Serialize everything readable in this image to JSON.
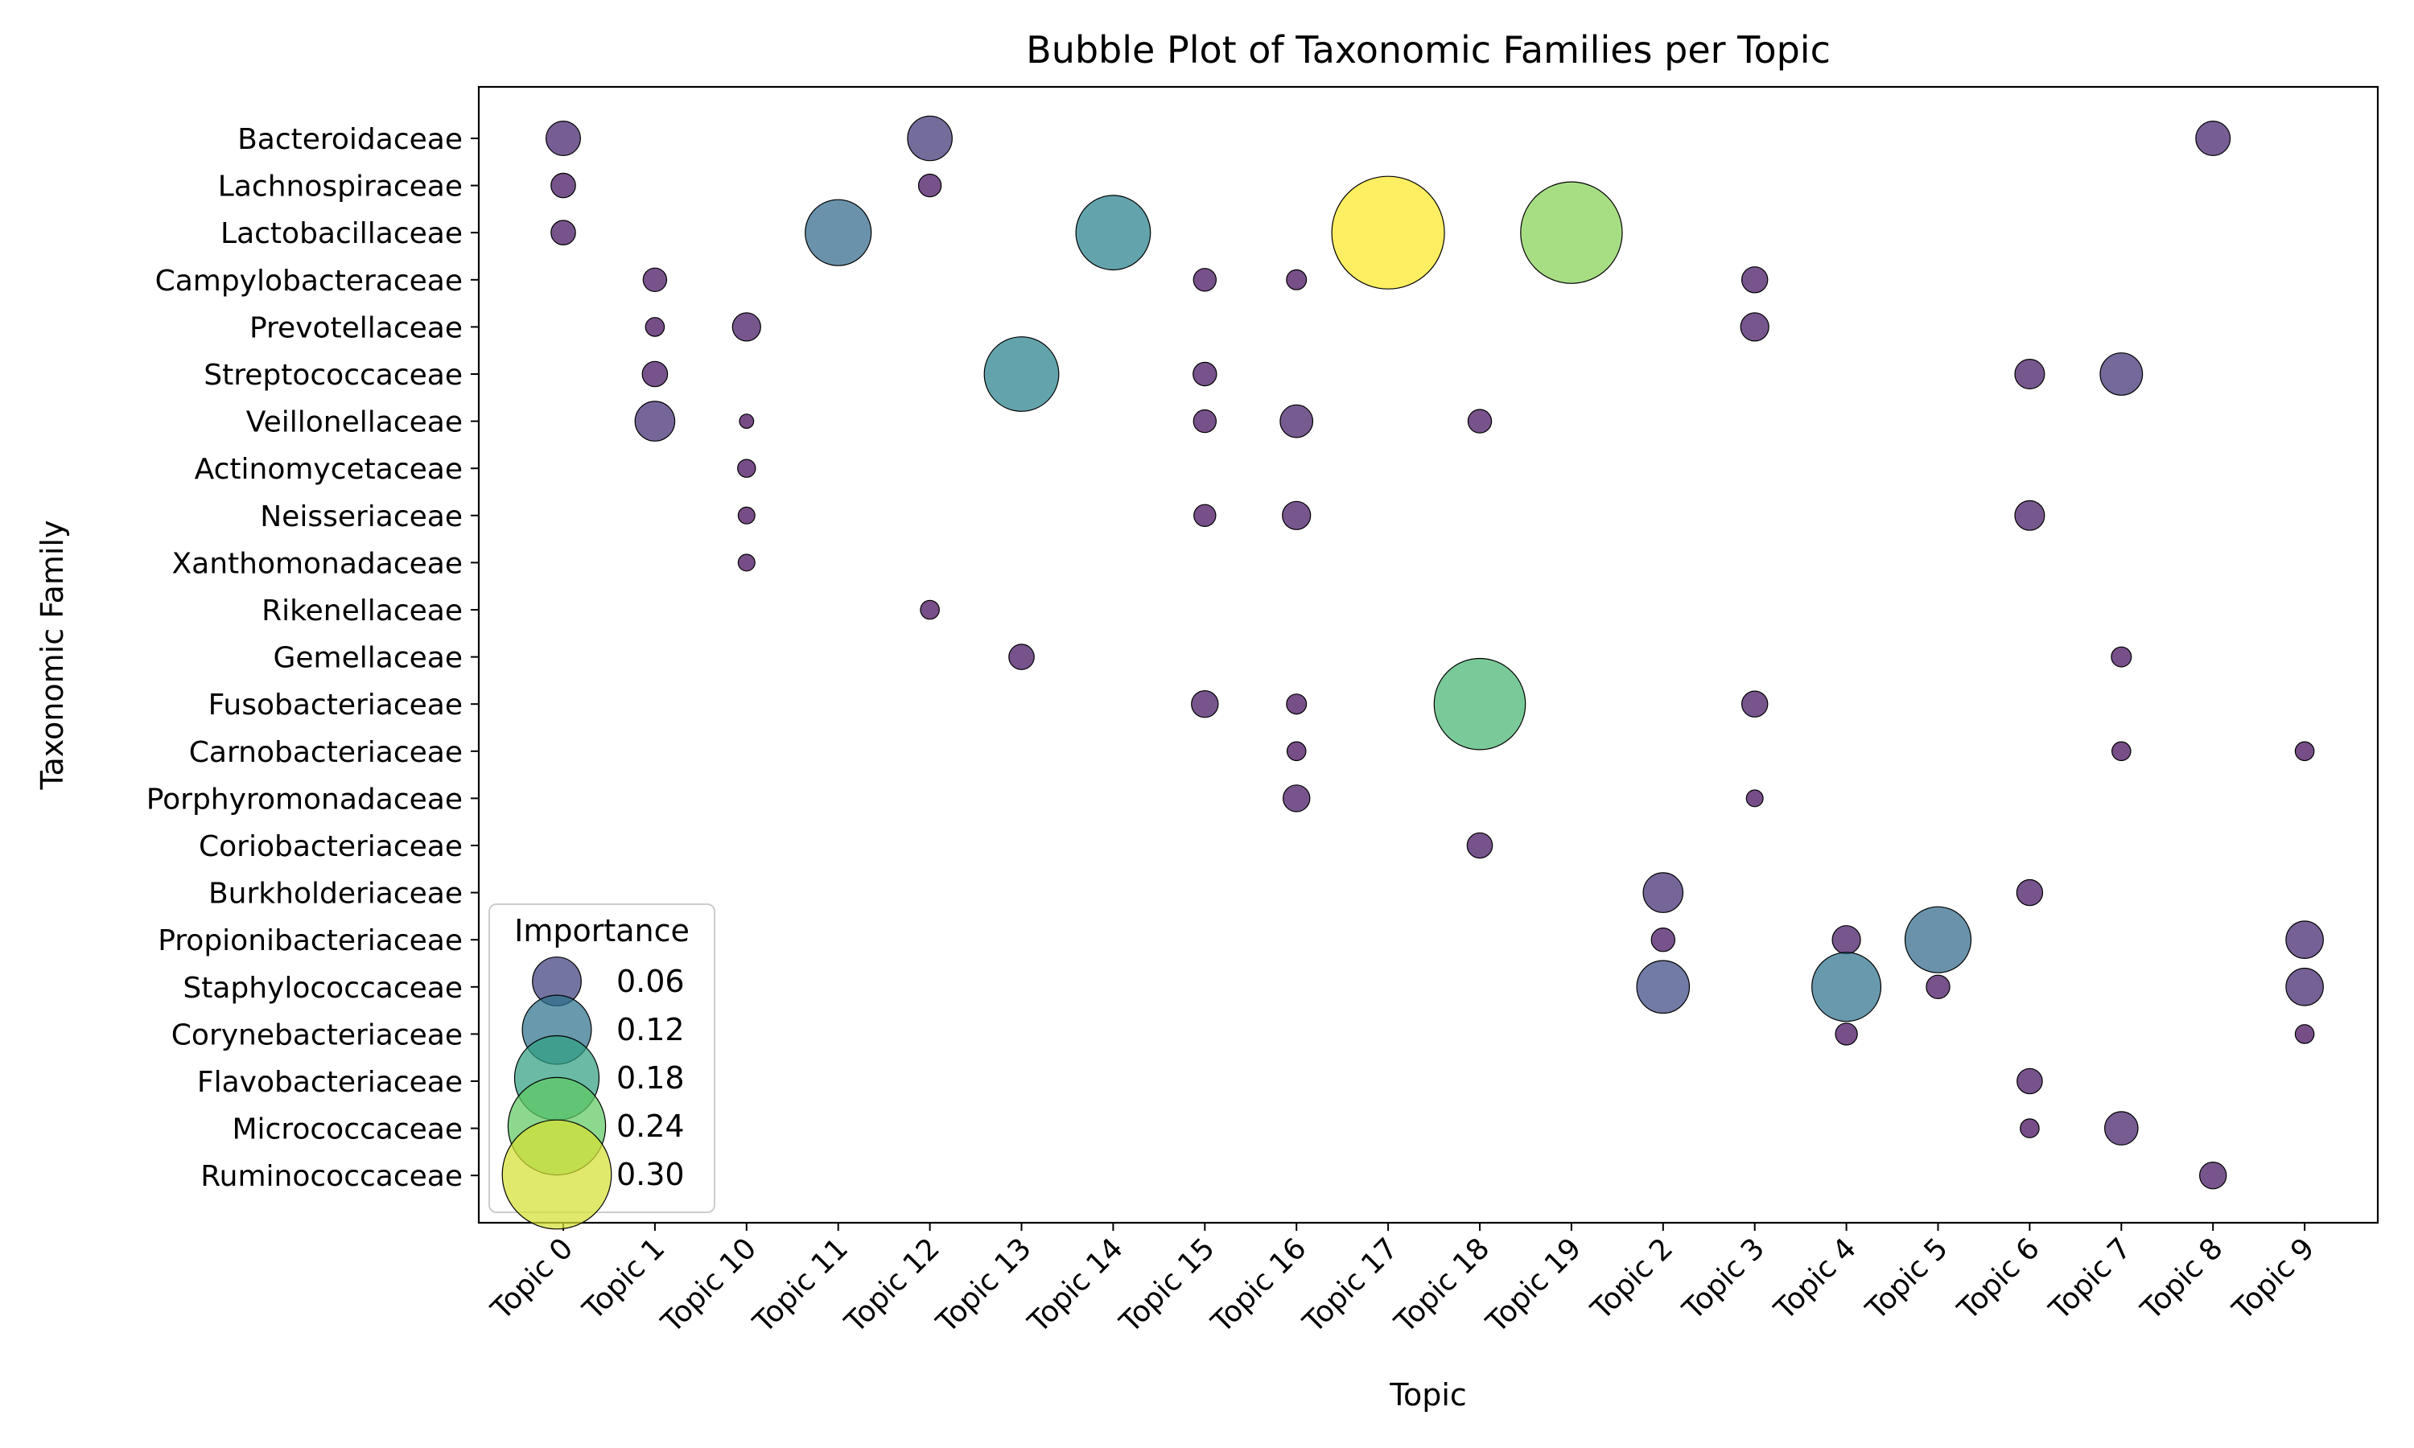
{
  "chart_data": {
    "type": "scatter",
    "subtype": "bubble",
    "title": "Bubble Plot of Taxonomic Families per Topic",
    "xlabel": "Topic",
    "ylabel": "Taxonomic Family",
    "categories_x": [
      "Topic 0",
      "Topic 1",
      "Topic 10",
      "Topic 11",
      "Topic 12",
      "Topic 13",
      "Topic 14",
      "Topic 15",
      "Topic 16",
      "Topic 17",
      "Topic 18",
      "Topic 19",
      "Topic 2",
      "Topic 3",
      "Topic 4",
      "Topic 5",
      "Topic 6",
      "Topic 7",
      "Topic 8",
      "Topic 9"
    ],
    "categories_y": [
      "Bacteroidaceae",
      "Lachnospiraceae",
      "Lactobacillaceae",
      "Campylobacteraceae",
      "Prevotellaceae",
      "Streptococcaceae",
      "Veillonellaceae",
      "Actinomycetaceae",
      "Neisseriaceae",
      "Xanthomonadaceae",
      "Rikenellaceae",
      "Gemellaceae",
      "Fusobacteriaceae",
      "Carnobacteriaceae",
      "Porphyromonadaceae",
      "Coriobacteriaceae",
      "Burkholderiaceae",
      "Propionibacteriaceae",
      "Staphylococcaceae",
      "Corynebacteriaceae",
      "Flavobacteriaceae",
      "Micrococcaceae",
      "Ruminococcaceae"
    ],
    "size_scale_max": 0.32,
    "colormap": [
      "#440154",
      "#3b528b",
      "#21918c",
      "#5ec962",
      "#fde725"
    ],
    "points": [
      {
        "x": "Topic 0",
        "y": "Bacteroidaceae",
        "value": 0.03
      },
      {
        "x": "Topic 0",
        "y": "Lachnospiraceae",
        "value": 0.015
      },
      {
        "x": "Topic 0",
        "y": "Lactobacillaceae",
        "value": 0.015
      },
      {
        "x": "Topic 1",
        "y": "Campylobacteraceae",
        "value": 0.014
      },
      {
        "x": "Topic 1",
        "y": "Prevotellaceae",
        "value": 0.009
      },
      {
        "x": "Topic 1",
        "y": "Streptococcaceae",
        "value": 0.016
      },
      {
        "x": "Topic 1",
        "y": "Veillonellaceae",
        "value": 0.04
      },
      {
        "x": "Topic 10",
        "y": "Prevotellaceae",
        "value": 0.02
      },
      {
        "x": "Topic 10",
        "y": "Veillonellaceae",
        "value": 0.005
      },
      {
        "x": "Topic 10",
        "y": "Actinomycetaceae",
        "value": 0.008
      },
      {
        "x": "Topic 10",
        "y": "Neisseriaceae",
        "value": 0.007
      },
      {
        "x": "Topic 10",
        "y": "Xanthomonadaceae",
        "value": 0.007
      },
      {
        "x": "Topic 11",
        "y": "Lactobacillaceae",
        "value": 0.11
      },
      {
        "x": "Topic 12",
        "y": "Bacteroidaceae",
        "value": 0.05
      },
      {
        "x": "Topic 12",
        "y": "Lachnospiraceae",
        "value": 0.013
      },
      {
        "x": "Topic 12",
        "y": "Rikenellaceae",
        "value": 0.009
      },
      {
        "x": "Topic 13",
        "y": "Streptococcaceae",
        "value": 0.14
      },
      {
        "x": "Topic 13",
        "y": "Gemellaceae",
        "value": 0.016
      },
      {
        "x": "Topic 14",
        "y": "Lactobacillaceae",
        "value": 0.14
      },
      {
        "x": "Topic 15",
        "y": "Campylobacteraceae",
        "value": 0.013
      },
      {
        "x": "Topic 15",
        "y": "Streptococcaceae",
        "value": 0.014
      },
      {
        "x": "Topic 15",
        "y": "Veillonellaceae",
        "value": 0.013
      },
      {
        "x": "Topic 15",
        "y": "Neisseriaceae",
        "value": 0.012
      },
      {
        "x": "Topic 15",
        "y": "Fusobacteriaceae",
        "value": 0.018
      },
      {
        "x": "Topic 16",
        "y": "Campylobacteraceae",
        "value": 0.01
      },
      {
        "x": "Topic 16",
        "y": "Veillonellaceae",
        "value": 0.027
      },
      {
        "x": "Topic 16",
        "y": "Neisseriaceae",
        "value": 0.02
      },
      {
        "x": "Topic 16",
        "y": "Fusobacteriaceae",
        "value": 0.01
      },
      {
        "x": "Topic 16",
        "y": "Carnobacteriaceae",
        "value": 0.009
      },
      {
        "x": "Topic 16",
        "y": "Porphyromonadaceae",
        "value": 0.018
      },
      {
        "x": "Topic 17",
        "y": "Lactobacillaceae",
        "value": 0.32
      },
      {
        "x": "Topic 18",
        "y": "Veillonellaceae",
        "value": 0.014
      },
      {
        "x": "Topic 18",
        "y": "Fusobacteriaceae",
        "value": 0.21
      },
      {
        "x": "Topic 18",
        "y": "Coriobacteriaceae",
        "value": 0.016
      },
      {
        "x": "Topic 19",
        "y": "Lactobacillaceae",
        "value": 0.26
      },
      {
        "x": "Topic 2",
        "y": "Burkholderiaceae",
        "value": 0.04
      },
      {
        "x": "Topic 2",
        "y": "Propionibacteriaceae",
        "value": 0.014
      },
      {
        "x": "Topic 2",
        "y": "Staphylococcaceae",
        "value": 0.07
      },
      {
        "x": "Topic 3",
        "y": "Campylobacteraceae",
        "value": 0.017
      },
      {
        "x": "Topic 3",
        "y": "Prevotellaceae",
        "value": 0.02
      },
      {
        "x": "Topic 3",
        "y": "Fusobacteriaceae",
        "value": 0.017
      },
      {
        "x": "Topic 3",
        "y": "Porphyromonadaceae",
        "value": 0.007
      },
      {
        "x": "Topic 4",
        "y": "Propionibacteriaceae",
        "value": 0.02
      },
      {
        "x": "Topic 4",
        "y": "Staphylococcaceae",
        "value": 0.12
      },
      {
        "x": "Topic 4",
        "y": "Corynebacteriaceae",
        "value": 0.012
      },
      {
        "x": "Topic 5",
        "y": "Propionibacteriaceae",
        "value": 0.11
      },
      {
        "x": "Topic 5",
        "y": "Staphylococcaceae",
        "value": 0.014
      },
      {
        "x": "Topic 6",
        "y": "Streptococcaceae",
        "value": 0.022
      },
      {
        "x": "Topic 6",
        "y": "Neisseriaceae",
        "value": 0.022
      },
      {
        "x": "Topic 6",
        "y": "Burkholderiaceae",
        "value": 0.017
      },
      {
        "x": "Topic 6",
        "y": "Flavobacteriaceae",
        "value": 0.016
      },
      {
        "x": "Topic 6",
        "y": "Micrococcaceae",
        "value": 0.009
      },
      {
        "x": "Topic 7",
        "y": "Streptococcaceae",
        "value": 0.045
      },
      {
        "x": "Topic 7",
        "y": "Gemellaceae",
        "value": 0.01
      },
      {
        "x": "Topic 7",
        "y": "Carnobacteriaceae",
        "value": 0.009
      },
      {
        "x": "Topic 7",
        "y": "Micrococcaceae",
        "value": 0.028
      },
      {
        "x": "Topic 8",
        "y": "Bacteroidaceae",
        "value": 0.03
      },
      {
        "x": "Topic 8",
        "y": "Ruminococcaceae",
        "value": 0.018
      },
      {
        "x": "Topic 9",
        "y": "Carnobacteriaceae",
        "value": 0.009
      },
      {
        "x": "Topic 9",
        "y": "Propionibacteriaceae",
        "value": 0.035
      },
      {
        "x": "Topic 9",
        "y": "Staphylococcaceae",
        "value": 0.035
      },
      {
        "x": "Topic 9",
        "y": "Corynebacteriaceae",
        "value": 0.009
      }
    ],
    "legend": {
      "title": "Importance",
      "placement": "lower-left",
      "entries": [
        {
          "label": "0.06",
          "value": 0.06
        },
        {
          "label": "0.12",
          "value": 0.12
        },
        {
          "label": "0.18",
          "value": 0.18
        },
        {
          "label": "0.24",
          "value": 0.24
        },
        {
          "label": "0.30",
          "value": 0.3
        }
      ]
    },
    "grid": false
  }
}
